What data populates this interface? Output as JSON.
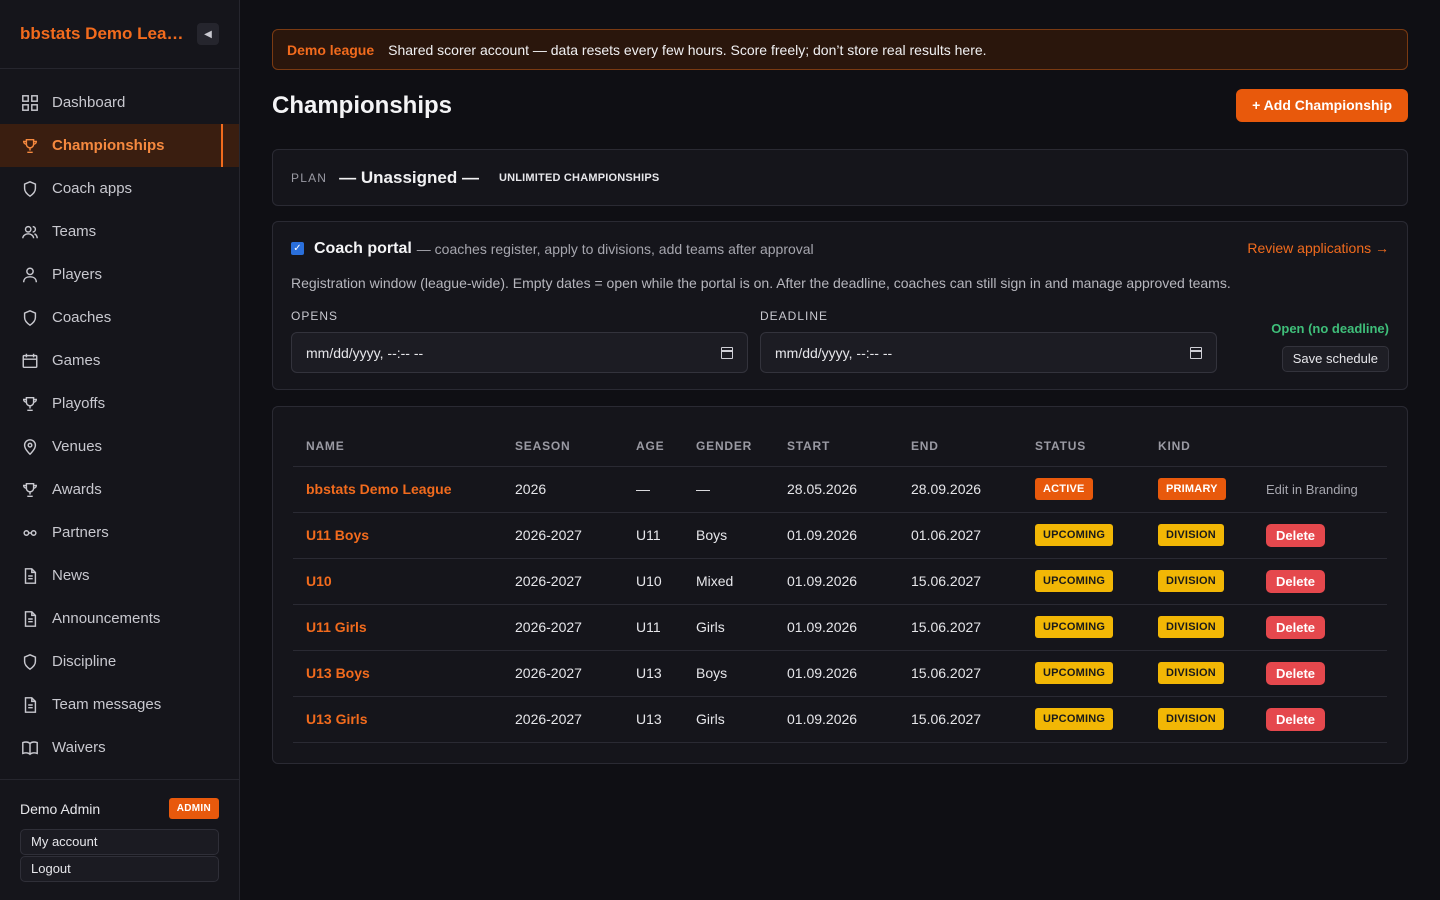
{
  "sidebar": {
    "brand": "bbstats Demo League",
    "collapse_icon": "◀",
    "items": [
      {
        "label": "Dashboard",
        "icon": "grid-icon"
      },
      {
        "label": "Championships",
        "icon": "trophy-icon",
        "active": true
      },
      {
        "label": "Coach apps",
        "icon": "shield-icon"
      },
      {
        "label": "Teams",
        "icon": "users-icon"
      },
      {
        "label": "Players",
        "icon": "user-icon"
      },
      {
        "label": "Coaches",
        "icon": "shield-icon"
      },
      {
        "label": "Games",
        "icon": "calendar-icon"
      },
      {
        "label": "Playoffs",
        "icon": "trophy-icon"
      },
      {
        "label": "Venues",
        "icon": "map-pin-icon"
      },
      {
        "label": "Awards",
        "icon": "trophy-icon"
      },
      {
        "label": "Partners",
        "icon": "link-icon"
      },
      {
        "label": "News",
        "icon": "document-icon"
      },
      {
        "label": "Announcements",
        "icon": "document-icon"
      },
      {
        "label": "Discipline",
        "icon": "shield-icon"
      },
      {
        "label": "Team messages",
        "icon": "document-icon"
      },
      {
        "label": "Waivers",
        "icon": "book-icon"
      }
    ],
    "user": {
      "name": "Demo Admin",
      "role_badge": "ADMIN",
      "my_account": "My account",
      "logout": "Logout"
    }
  },
  "banner": {
    "tag": "Demo league",
    "text": "Shared scorer account — data resets every few hours. Score freely; don’t store real results here."
  },
  "header": {
    "title": "Championships",
    "add_button": "+ Add Championship"
  },
  "plan": {
    "label": "PLAN",
    "value": "— Unassigned —",
    "limit": "UNLIMITED CHAMPIONSHIPS"
  },
  "portal": {
    "checked": true,
    "title": "Coach portal",
    "description": "— coaches register, apply to divisions, add teams after approval",
    "review_link": "Review applications →",
    "info": "Registration window (league-wide). Empty dates = open while the portal is on. After the deadline, coaches can still sign in and manage approved teams.",
    "opens_label": "OPENS",
    "opens_value": "mm/dd/yyyy, --:-- --",
    "deadline_label": "DEADLINE",
    "deadline_value": "mm/dd/yyyy, --:-- --",
    "status": "Open (no deadline)",
    "save_button": "Save schedule"
  },
  "table": {
    "columns": [
      "NAME",
      "SEASON",
      "AGE",
      "GENDER",
      "START",
      "END",
      "STATUS",
      "KIND",
      ""
    ],
    "rows": [
      {
        "name": "bbstats Demo League",
        "season": "2026",
        "age": "—",
        "gender": "—",
        "start": "28.05.2026",
        "end": "28.09.2026",
        "status": "ACTIVE",
        "kind": "PRIMARY",
        "action": "Edit in Branding"
      },
      {
        "name": "U11 Boys",
        "season": "2026-2027",
        "age": "U11",
        "gender": "Boys",
        "start": "01.09.2026",
        "end": "01.06.2027",
        "status": "UPCOMING",
        "kind": "DIVISION",
        "action": "Delete"
      },
      {
        "name": "U10",
        "season": "2026-2027",
        "age": "U10",
        "gender": "Mixed",
        "start": "01.09.2026",
        "end": "15.06.2027",
        "status": "UPCOMING",
        "kind": "DIVISION",
        "action": "Delete"
      },
      {
        "name": "U11 Girls",
        "season": "2026-2027",
        "age": "U11",
        "gender": "Girls",
        "start": "01.09.2026",
        "end": "15.06.2027",
        "status": "UPCOMING",
        "kind": "DIVISION",
        "action": "Delete"
      },
      {
        "name": "U13 Boys",
        "season": "2026-2027",
        "age": "U13",
        "gender": "Boys",
        "start": "01.09.2026",
        "end": "15.06.2027",
        "status": "UPCOMING",
        "kind": "DIVISION",
        "action": "Delete"
      },
      {
        "name": "U13 Girls",
        "season": "2026-2027",
        "age": "U13",
        "gender": "Girls",
        "start": "01.09.2026",
        "end": "15.06.2027",
        "status": "UPCOMING",
        "kind": "DIVISION",
        "action": "Delete"
      }
    ]
  },
  "colors": {
    "accent": "#f26b1d",
    "background": "#0f0f14",
    "warning": "#f2b705",
    "danger": "#e5484d",
    "success": "#3fbf7a"
  }
}
